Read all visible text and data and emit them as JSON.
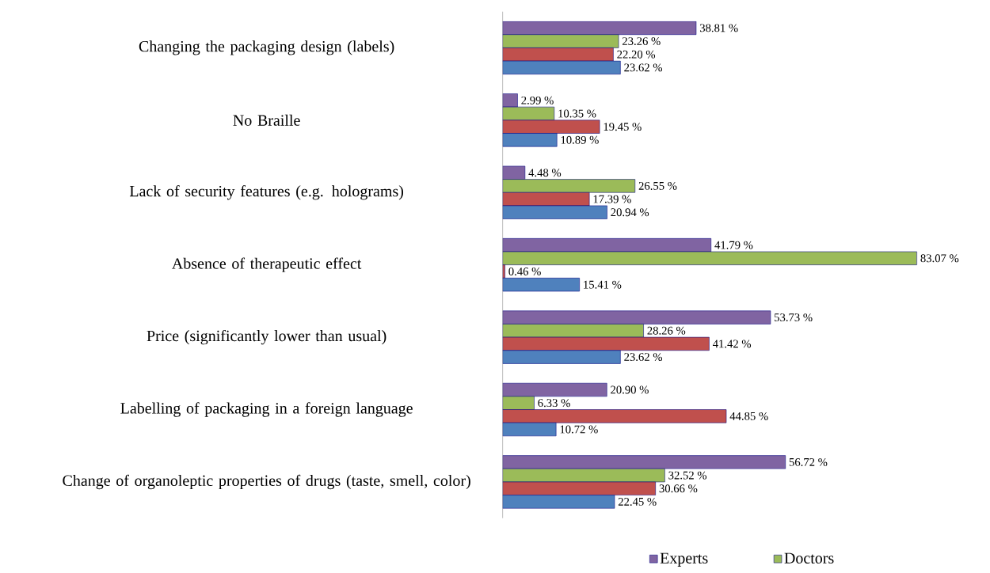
{
  "chart_data": {
    "type": "bar",
    "orientation": "horizontal",
    "tick_labels": "y",
    "legend": "bottom",
    "categories": [
      "Changing the packaging design (labels)",
      "No Braille",
      "Lack of security features (e.g. holograms)",
      "Absence of therapeutic effect",
      "Price (significantly lower than usual)",
      "Labelling of packaging in a foreign language",
      "Change of organoleptic properties of drugs (taste, smell, color)"
    ],
    "series": [
      {
        "name": "Experts",
        "color": "#8064a2",
        "values": [
          38.81,
          2.99,
          4.48,
          41.79,
          53.73,
          20.9,
          56.72
        ],
        "value_labels": [
          "38.81 %",
          "2.99 %",
          "4.48 %",
          "41.79 %",
          "53.73 %",
          "20.90 %",
          "56.72 %"
        ]
      },
      {
        "name": "Doctors",
        "color": "#9bbb59",
        "values": [
          23.26,
          10.35,
          26.55,
          83.07,
          28.26,
          6.33,
          32.52
        ],
        "value_labels": [
          "23.26 %",
          "10.35 %",
          "26.55 %",
          "83.07 %",
          "28.26 %",
          "6.33 %",
          "32.52 %"
        ]
      },
      {
        "color": "#c0504d",
        "values": [
          22.2,
          19.45,
          17.39,
          0.46,
          41.42,
          44.85,
          30.66
        ],
        "value_labels": [
          "22.20 %",
          "19.45 %",
          "17.39 %",
          "0.46 %",
          "41.42 %",
          "44.85 %",
          "30.66 %"
        ]
      },
      {
        "color": "#4f81bd",
        "values": [
          23.62,
          10.89,
          20.94,
          15.41,
          23.62,
          10.72,
          22.45
        ],
        "value_labels": [
          "23.62 %",
          "10.89 %",
          "20.94 %",
          "15.41 %",
          "23.62 %",
          "10.72 %",
          "22.45 %"
        ]
      }
    ]
  }
}
